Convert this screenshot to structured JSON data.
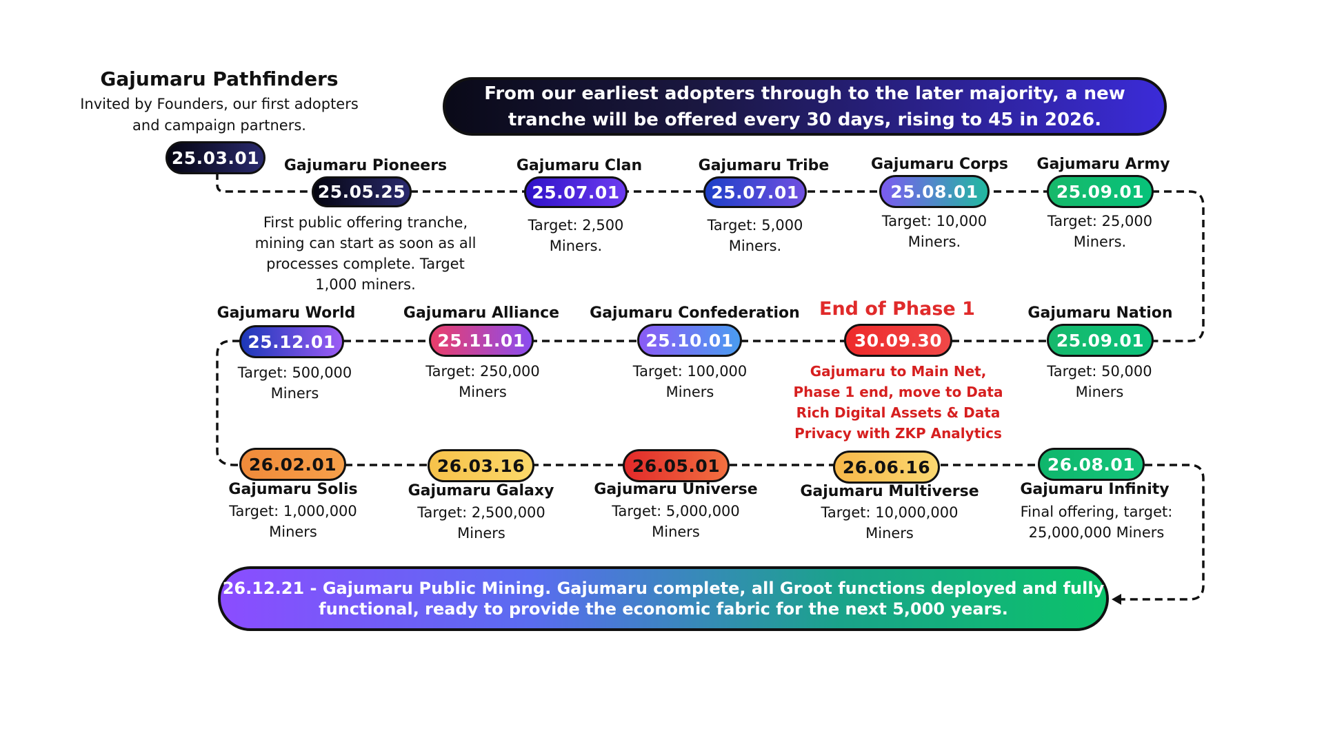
{
  "top_banner": "From our earliest adopters through to the later majority, a new tranche will be offered every 30 days, rising to 45 in 2026.",
  "bottom_banner": "26.12.21 - Gajumaru Public Mining. Gajumaru complete, all Groot functions deployed and fully functional, ready to provide the economic fabric for the next 5,000 years.",
  "pathfinders": {
    "title": "Gajumaru Pathfinders",
    "description": "Invited by Founders, our first adopters and campaign partners.",
    "date": "25.03.01"
  },
  "phase_label": "End of Phase 1",
  "row1": [
    {
      "title": "Gajumaru Pioneers",
      "date": "25.05.25",
      "desc": "First public offering tranche, mining can start as soon as all processes complete. Target 1,000 miners.",
      "gradient": [
        "#050510",
        "#2a2a6e"
      ]
    },
    {
      "title": "Gajumaru Clan",
      "date": "25.07.01",
      "desc": "Target: 2,500 Miners.",
      "gradient": [
        "#2f12c8",
        "#6d3cf0"
      ]
    },
    {
      "title": "Gajumaru Tribe",
      "date": "25.07.01",
      "desc": "Target: 5,000 Miners.",
      "gradient": [
        "#1e40c8",
        "#7050e0"
      ]
    },
    {
      "title": "Gajumaru Corps",
      "date": "25.08.01",
      "desc": "Target: 10,000 Miners.",
      "gradient": [
        "#7b5bf0",
        "#22b8a0"
      ]
    },
    {
      "title": "Gajumaru Army",
      "date": "25.09.01",
      "desc": "Target: 25,000 Miners.",
      "gradient": [
        "#17b86a",
        "#07c27a"
      ]
    }
  ],
  "row2": [
    {
      "title": "Gajumaru World",
      "date": "25.12.01",
      "desc": "Target: 500,000 Miners",
      "gradient": [
        "#1c38b8",
        "#9c5cf5"
      ]
    },
    {
      "title": "Gajumaru Alliance",
      "date": "25.11.01",
      "desc": "Target: 250,000 Miners",
      "gradient": [
        "#ea3e6a",
        "#8a4cf0"
      ]
    },
    {
      "title": "Gajumaru Confederation",
      "date": "25.10.01",
      "desc": "Target: 100,000 Miners",
      "gradient": [
        "#8a5bf5",
        "#4a9cf0"
      ]
    },
    {
      "title": "",
      "date": "30.09.30",
      "desc": "Gajumaru to Main Net, Phase 1 end, move to Data Rich Digital Assets & Data Privacy with ZKP Analytics",
      "gradient": [
        "#ee2a2a",
        "#f04848"
      ]
    },
    {
      "title": "Gajumaru Nation",
      "date": "25.09.01",
      "desc": "Target: 50,000 Miners",
      "gradient": [
        "#16b86c",
        "#0bc27a"
      ]
    }
  ],
  "row3": [
    {
      "title": "Gajumaru Solis",
      "date": "26.02.01",
      "desc": "Target: 1,000,000 Miners",
      "gradient": [
        "#f08a3a",
        "#f7a04a"
      ]
    },
    {
      "title": "Gajumaru Galaxy",
      "date": "26.03.16",
      "desc": "Target: 2,500,000 Miners",
      "gradient": [
        "#f7c24a",
        "#fbd86a"
      ]
    },
    {
      "title": "Gajumaru Universe",
      "date": "26.05.01",
      "desc": "Target: 5,000,000 Miners",
      "gradient": [
        "#e22a2a",
        "#f27040"
      ]
    },
    {
      "title": "Gajumaru Multiverse",
      "date": "26.06.16",
      "desc": "Target: 10,000,000 Miners",
      "gradient": [
        "#f7b84a",
        "#fbd870"
      ]
    },
    {
      "title": "Gajumaru Infinity",
      "date": "26.08.01",
      "desc": "Final offering, target: 25,000,000 Miners",
      "gradient": [
        "#0fb66c",
        "#14c47a"
      ]
    }
  ]
}
